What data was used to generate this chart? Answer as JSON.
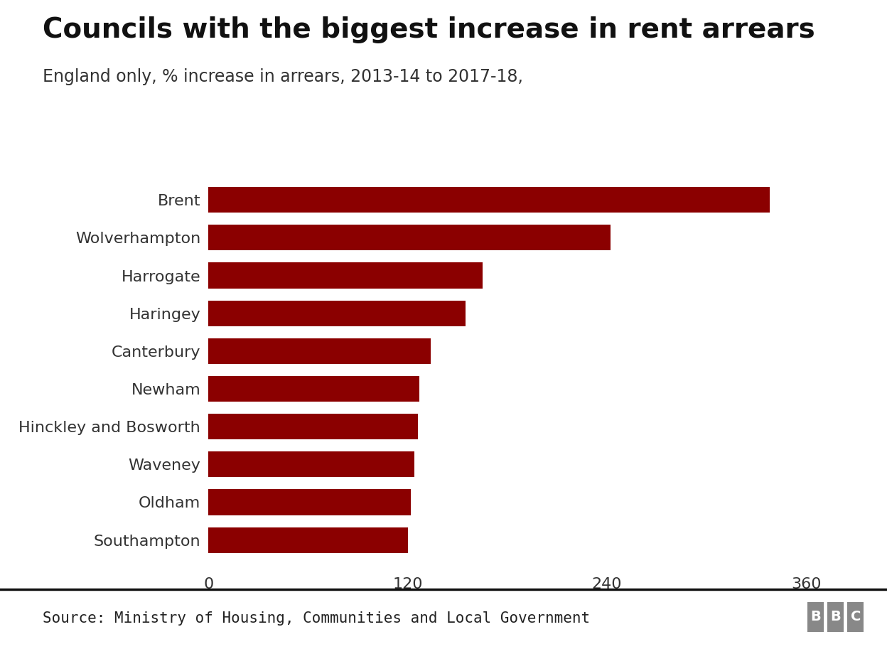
{
  "title": "Councils with the biggest increase in rent arrears",
  "subtitle": "England only, % increase in arrears, 2013-14 to 2017-18,",
  "source": "Source: Ministry of Housing, Communities and Local Government",
  "bbc_label": "BBC",
  "categories": [
    "Southampton",
    "Oldham",
    "Waveney",
    "Hinckley and Bosworth",
    "Newham",
    "Canterbury",
    "Haringey",
    "Harrogate",
    "Wolverhampton",
    "Brent"
  ],
  "values": [
    120,
    122,
    124,
    126,
    127,
    134,
    155,
    165,
    242,
    338
  ],
  "bar_color": "#8B0000",
  "background_color": "#ffffff",
  "xlim": [
    0,
    390
  ],
  "xticks": [
    0,
    120,
    240,
    360
  ],
  "title_fontsize": 28,
  "subtitle_fontsize": 17,
  "tick_fontsize": 16,
  "label_fontsize": 16,
  "source_fontsize": 15
}
